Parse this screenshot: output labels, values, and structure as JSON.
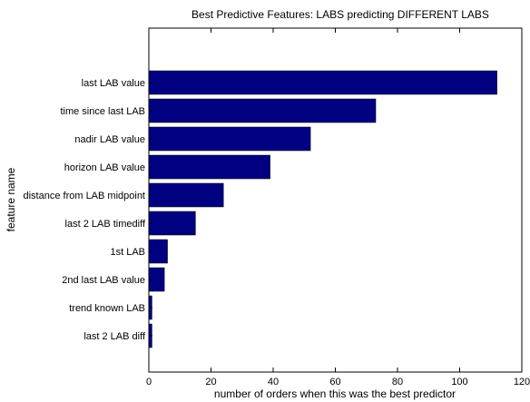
{
  "chart_data": {
    "type": "bar",
    "orientation": "horizontal",
    "title": "Best Predictive Features: LABS predicting DIFFERENT LABS",
    "xlabel": "number of orders when this was the best predictor",
    "ylabel": "feature name",
    "xlim": [
      0,
      120
    ],
    "xticks": [
      0,
      20,
      40,
      60,
      80,
      100,
      120
    ],
    "grid": false,
    "bar_color": "#000080",
    "categories": [
      "last LAB value",
      "time since last LAB",
      "nadir LAB value",
      "horizon LAB value",
      "distance from LAB midpoint",
      "last 2 LAB timediff",
      "1st LAB",
      "2nd last LAB value",
      "trend known LAB",
      "last 2 LAB diff"
    ],
    "values": [
      112,
      73,
      52,
      39,
      24,
      15,
      6,
      5,
      1,
      1
    ]
  }
}
